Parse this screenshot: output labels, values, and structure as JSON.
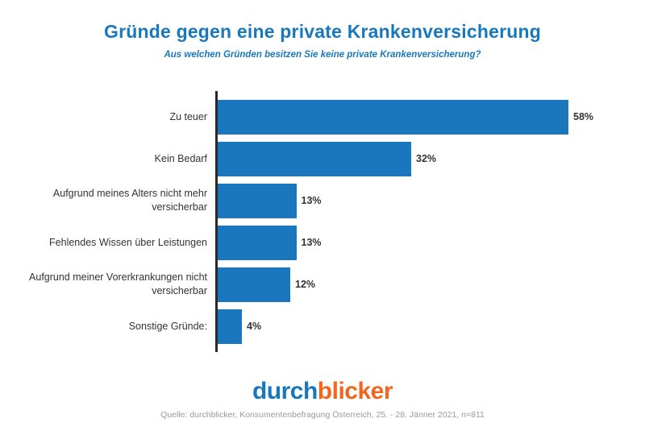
{
  "header": {
    "title": "Gründe gegen eine private Krankenversicherung",
    "subtitle": "Aus welchen Gründen besitzen Sie keine private Krankenversicherung?"
  },
  "chart_data": {
    "type": "bar",
    "orientation": "horizontal",
    "categories": [
      "Zu teuer",
      "Kein Bedarf",
      "Aufgrund meines Alters nicht mehr versicherbar",
      "Fehlendes Wissen über Leistungen",
      "Aufgrund meiner Vorerkrankungen nicht versicherbar",
      "Sonstige Gründe:"
    ],
    "values": [
      58,
      32,
      13,
      13,
      12,
      4
    ],
    "value_suffix": "%",
    "title": "Gründe gegen eine private Krankenversicherung",
    "xlabel": "",
    "ylabel": "",
    "xlim": [
      0,
      60
    ],
    "grid": false,
    "legend": "none",
    "bar_color": "#1a76bd",
    "axis_color": "#2a2a2a"
  },
  "footer": {
    "logo_part_1": "durch",
    "logo_part_2": "blicker",
    "source": "Quelle: durchblicker, Konsumentenbefragung Österreich, 25. - 28. Jänner 2021, n=811"
  },
  "colors": {
    "title_blue": "#1878be",
    "bar_blue": "#1a76bd",
    "logo_orange": "#f0671f",
    "text_dark": "#333333",
    "source_gray": "#9b9b9b"
  }
}
